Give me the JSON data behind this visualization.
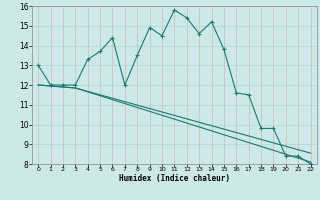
{
  "xlabel": "Humidex (Indice chaleur)",
  "bg_color": "#cce8e8",
  "grid_color": "#b0d4d4",
  "line_color": "#1a7a6e",
  "xlim": [
    -0.5,
    22.5
  ],
  "ylim": [
    8,
    16
  ],
  "xticks": [
    0,
    1,
    2,
    3,
    4,
    5,
    6,
    7,
    8,
    9,
    10,
    11,
    12,
    13,
    14,
    15,
    16,
    17,
    18,
    19,
    20,
    21,
    22
  ],
  "yticks": [
    8,
    9,
    10,
    11,
    12,
    13,
    14,
    15,
    16
  ],
  "line1_x": [
    0,
    1,
    2,
    3,
    4,
    5,
    6,
    7,
    8,
    9,
    10,
    11,
    12,
    13,
    14,
    15,
    16,
    17,
    18,
    19,
    20,
    21,
    22
  ],
  "line1_y": [
    13,
    12,
    12,
    12,
    13.3,
    13.7,
    14.4,
    12.0,
    13.5,
    14.9,
    14.5,
    15.8,
    15.4,
    14.6,
    15.2,
    13.8,
    11.6,
    11.5,
    9.8,
    9.8,
    8.4,
    8.4,
    8.0
  ],
  "line2_x": [
    0,
    3,
    22
  ],
  "line2_y": [
    12.0,
    11.85,
    8.55
  ],
  "line3_x": [
    0,
    3,
    22
  ],
  "line3_y": [
    12.0,
    11.85,
    8.1
  ]
}
